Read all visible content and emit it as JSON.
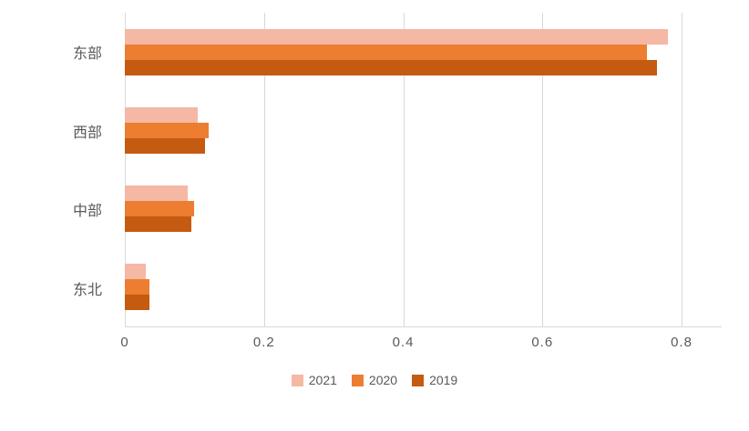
{
  "chart_data": {
    "type": "bar",
    "orientation": "horizontal",
    "title": "",
    "xlabel": "",
    "ylabel": "",
    "categories": [
      "东部",
      "西部",
      "中部",
      "东北"
    ],
    "series": [
      {
        "name": "2021",
        "color": "#f4b8a4",
        "values": [
          0.78,
          0.105,
          0.09,
          0.03
        ]
      },
      {
        "name": "2020",
        "color": "#ed7d31",
        "values": [
          0.75,
          0.12,
          0.1,
          0.035
        ]
      },
      {
        "name": "2019",
        "color": "#c55a11",
        "values": [
          0.765,
          0.115,
          0.095,
          0.035
        ]
      }
    ],
    "xlim": [
      0,
      0.8
    ],
    "xticks": [
      0,
      0.2,
      0.4,
      0.6,
      0.8
    ],
    "xtick_labels": [
      "0",
      "0.2",
      "0.4",
      "0.6",
      "0.8"
    ],
    "grid": true,
    "gridline_color": "#d9d9d9",
    "legend_position": "bottom",
    "text_color": "#595959"
  }
}
